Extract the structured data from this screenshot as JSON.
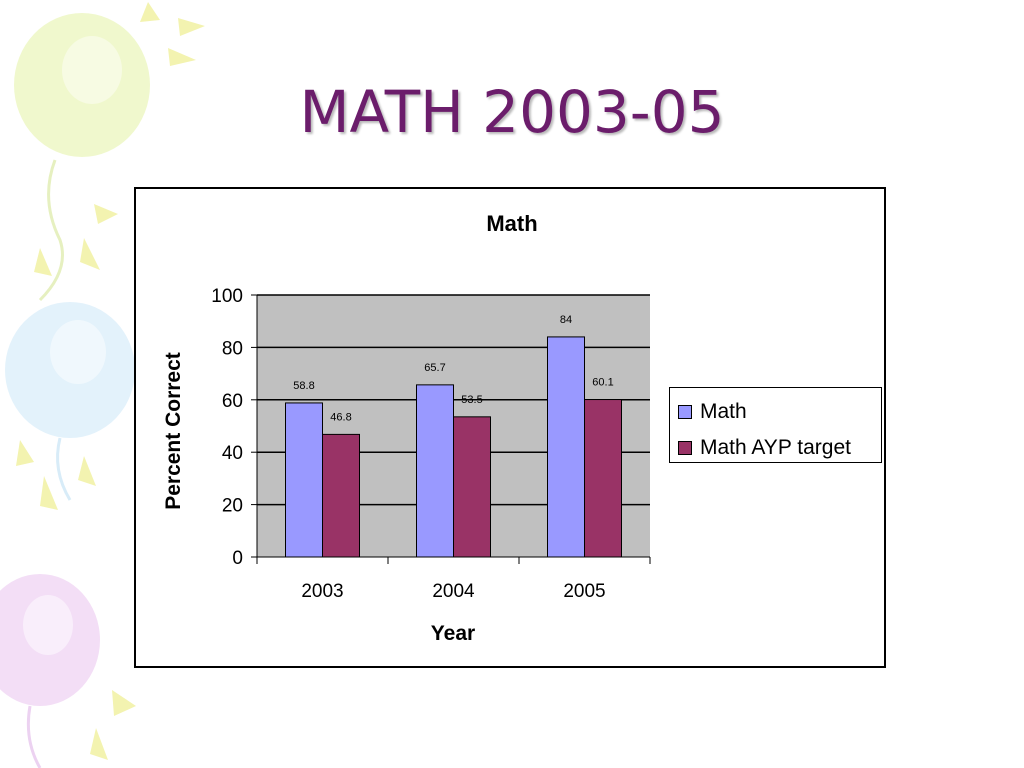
{
  "slide": {
    "title": "MATH 2003-05"
  },
  "chart_data": {
    "type": "bar",
    "title": "Math",
    "xlabel": "Year",
    "ylabel": "Percent Correct",
    "categories": [
      "2003",
      "2004",
      "2005"
    ],
    "series": [
      {
        "name": "Math",
        "values": [
          58.8,
          65.7,
          84
        ],
        "color": "#9999ff"
      },
      {
        "name": "Math AYP target",
        "values": [
          46.8,
          53.5,
          60.1
        ],
        "color": "#993366"
      }
    ],
    "ylim": [
      0,
      100
    ],
    "yticks": [
      0,
      20,
      40,
      60,
      80,
      100
    ],
    "plot_background": "#c0c0c0",
    "grid": true,
    "legend": "right"
  }
}
